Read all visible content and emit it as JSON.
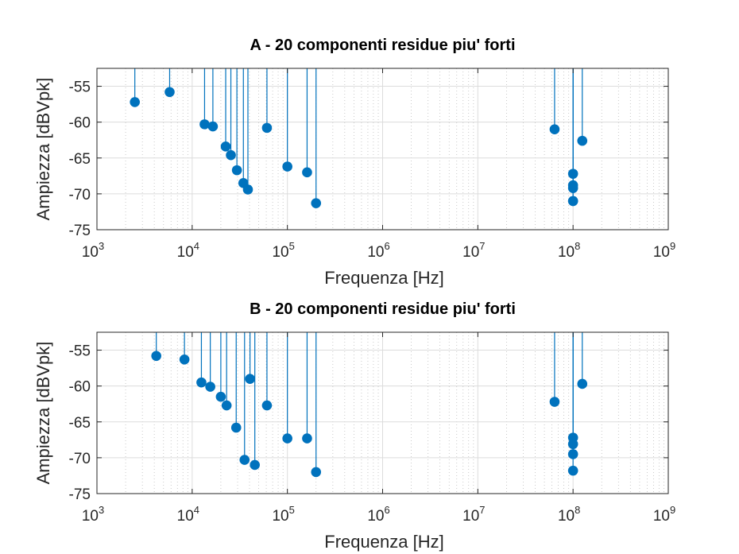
{
  "chart_data": [
    {
      "type": "stem",
      "title": "A - 20 componenti residue piu' forti",
      "xlabel": "Frequenza [Hz]",
      "ylabel": "Ampiezza [dBVpk]",
      "xscale": "log",
      "xlim": [
        1000,
        1000000000
      ],
      "ylim": [
        -75,
        -52.5
      ],
      "yticks": [
        -75,
        -70,
        -65,
        -60,
        -55
      ],
      "xtick_exponents": [
        "3",
        "4",
        "5",
        "6",
        "7",
        "8",
        "9"
      ],
      "grid": true,
      "color": "#0072BD",
      "points": [
        {
          "x": 2500,
          "y": -57.2
        },
        {
          "x": 5800,
          "y": -55.8
        },
        {
          "x": 13500,
          "y": -60.3
        },
        {
          "x": 16500,
          "y": -60.6
        },
        {
          "x": 22500,
          "y": -63.4
        },
        {
          "x": 25500,
          "y": -64.6
        },
        {
          "x": 29500,
          "y": -66.7
        },
        {
          "x": 34500,
          "y": -68.5
        },
        {
          "x": 38500,
          "y": -69.4
        },
        {
          "x": 61000,
          "y": -60.8
        },
        {
          "x": 100000,
          "y": -66.2
        },
        {
          "x": 161000,
          "y": -67.0
        },
        {
          "x": 200000,
          "y": -71.3
        },
        {
          "x": 64000000,
          "y": -61.0
        },
        {
          "x": 100000000,
          "y": -67.2
        },
        {
          "x": 100000000,
          "y": -68.8
        },
        {
          "x": 100000000,
          "y": -69.2
        },
        {
          "x": 100000000,
          "y": -71.0
        },
        {
          "x": 100000000,
          "y": -71.0
        },
        {
          "x": 125000000,
          "y": -62.6
        }
      ]
    },
    {
      "type": "stem",
      "title": "B - 20 componenti residue piu' forti",
      "xlabel": "Frequenza [Hz]",
      "ylabel": "Ampiezza [dBVpk]",
      "xscale": "log",
      "xlim": [
        1000,
        1000000000
      ],
      "ylim": [
        -75,
        -52.5
      ],
      "yticks": [
        -75,
        -70,
        -65,
        -60,
        -55
      ],
      "xtick_exponents": [
        "3",
        "4",
        "5",
        "6",
        "7",
        "8",
        "9"
      ],
      "grid": true,
      "color": "#0072BD",
      "points": [
        {
          "x": 4200,
          "y": -55.8
        },
        {
          "x": 8300,
          "y": -56.3
        },
        {
          "x": 12500,
          "y": -59.5
        },
        {
          "x": 15500,
          "y": -60.1
        },
        {
          "x": 20000,
          "y": -61.5
        },
        {
          "x": 23000,
          "y": -62.7
        },
        {
          "x": 29000,
          "y": -65.8
        },
        {
          "x": 35500,
          "y": -70.3
        },
        {
          "x": 40500,
          "y": -59.0
        },
        {
          "x": 45500,
          "y": -71.0
        },
        {
          "x": 61000,
          "y": -62.7
        },
        {
          "x": 100000,
          "y": -67.3
        },
        {
          "x": 161000,
          "y": -67.3
        },
        {
          "x": 200000,
          "y": -72.0
        },
        {
          "x": 64000000,
          "y": -62.2
        },
        {
          "x": 100000000,
          "y": -67.2
        },
        {
          "x": 100000000,
          "y": -68.1
        },
        {
          "x": 100000000,
          "y": -69.5
        },
        {
          "x": 100000000,
          "y": -71.8
        },
        {
          "x": 125000000,
          "y": -59.7
        }
      ]
    }
  ]
}
